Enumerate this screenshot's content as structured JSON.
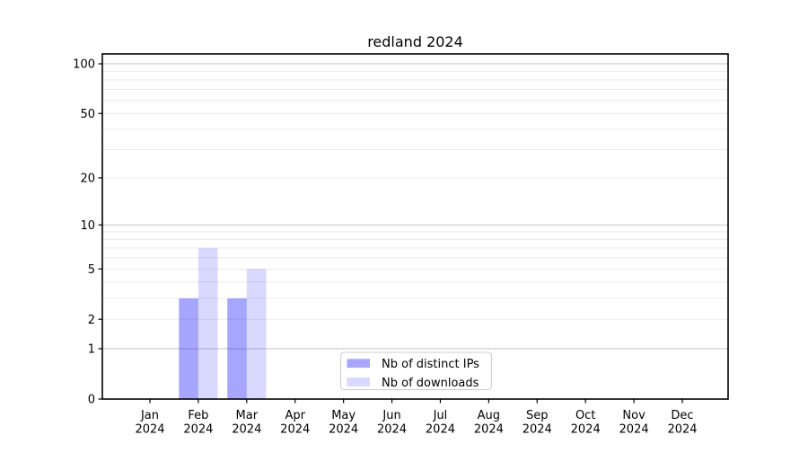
{
  "figure": {
    "background": "#ffffff"
  },
  "chart_data": {
    "type": "bar",
    "title": "redland 2024",
    "categories": [
      "Jan",
      "Feb",
      "Mar",
      "Apr",
      "May",
      "Jun",
      "Jul",
      "Aug",
      "Sep",
      "Oct",
      "Nov",
      "Dec"
    ],
    "year_label": "2024",
    "series": [
      {
        "name": "Nb of distinct IPs",
        "color": "#0000ff",
        "opacity": 0.35,
        "values": [
          0,
          3,
          3,
          0,
          0,
          0,
          0,
          0,
          0,
          0,
          0,
          0
        ]
      },
      {
        "name": "Nb of downloads",
        "color": "#0000ff",
        "opacity": 0.15,
        "values": [
          0,
          7,
          5,
          0,
          0,
          0,
          0,
          0,
          0,
          0,
          0,
          0
        ]
      }
    ],
    "yscale": "log1p",
    "yticks": [
      0,
      1,
      2,
      5,
      10,
      20,
      50,
      100
    ],
    "ylim": [
      0,
      115
    ],
    "grid": {
      "decade_values": [
        1,
        10,
        100
      ],
      "minor_values": [
        2,
        3,
        4,
        5,
        6,
        7,
        8,
        9,
        20,
        30,
        40,
        50,
        60,
        70,
        80,
        90
      ],
      "decade_color": "#c6c6c6",
      "minor_color": "#ececec"
    },
    "axis_color": "#000000",
    "legend": {
      "position": "lower center",
      "border_color": "#cccccc",
      "background": "#ffffff"
    }
  }
}
